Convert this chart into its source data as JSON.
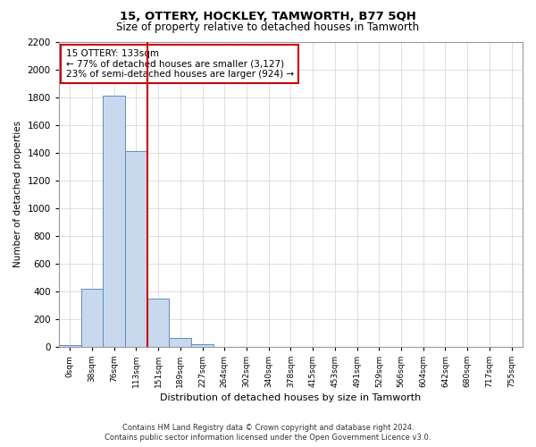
{
  "title": "15, OTTERY, HOCKLEY, TAMWORTH, B77 5QH",
  "subtitle": "Size of property relative to detached houses in Tamworth",
  "xlabel": "Distribution of detached houses by size in Tamworth",
  "ylabel": "Number of detached properties",
  "categories": [
    "0sqm",
    "38sqm",
    "76sqm",
    "113sqm",
    "151sqm",
    "189sqm",
    "227sqm",
    "264sqm",
    "302sqm",
    "340sqm",
    "378sqm",
    "415sqm",
    "453sqm",
    "491sqm",
    "529sqm",
    "566sqm",
    "604sqm",
    "642sqm",
    "680sqm",
    "717sqm",
    "755sqm"
  ],
  "bar_values": [
    10,
    420,
    1810,
    1410,
    345,
    65,
    20,
    0,
    0,
    0,
    0,
    0,
    0,
    0,
    0,
    0,
    0,
    0,
    0,
    0,
    0
  ],
  "bar_color": "#c8d9ee",
  "bar_edgecolor": "#5b8dc8",
  "vline_x": 3.5,
  "vline_color": "#cc0000",
  "ylim": [
    0,
    2200
  ],
  "yticks": [
    0,
    200,
    400,
    600,
    800,
    1000,
    1200,
    1400,
    1600,
    1800,
    2000,
    2200
  ],
  "annotation_text": "15 OTTERY: 133sqm\n← 77% of detached houses are smaller (3,127)\n23% of semi-detached houses are larger (924) →",
  "annotation_box_color": "#ffffff",
  "annotation_box_edgecolor": "#cc0000",
  "footer_line1": "Contains HM Land Registry data © Crown copyright and database right 2024.",
  "footer_line2": "Contains public sector information licensed under the Open Government Licence v3.0.",
  "grid_color": "#d0d0d8",
  "background_color": "#ffffff"
}
